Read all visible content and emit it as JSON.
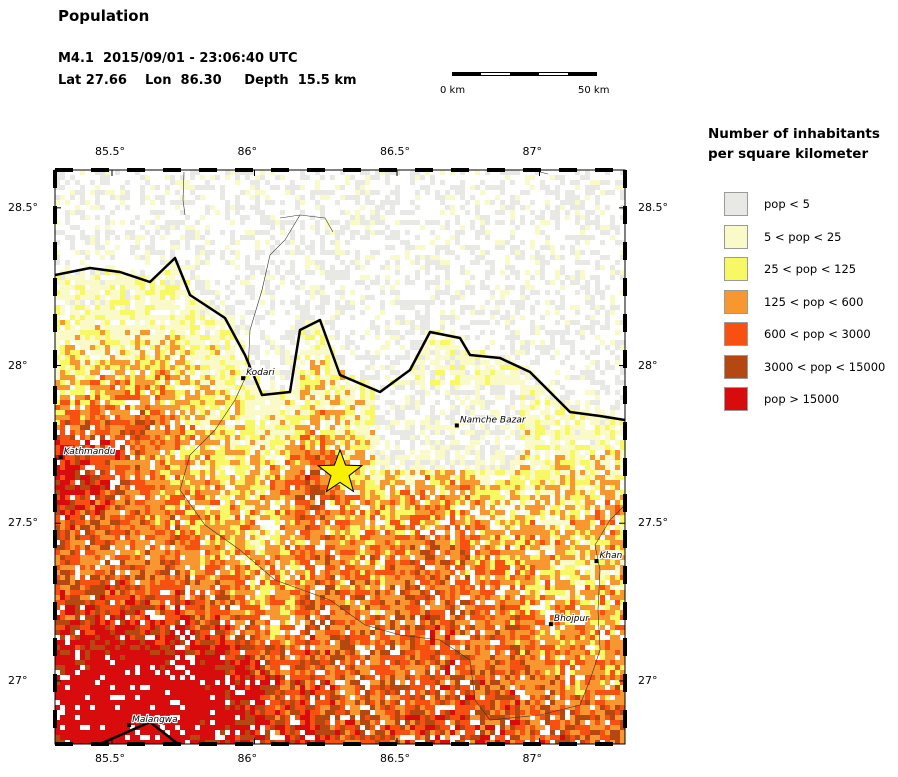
{
  "title": "Population",
  "event": "M4.1  2015/09/01 - 23:06:40 UTC",
  "location": "Lat 27.66    Lon  86.30     Depth  15.5 km",
  "scale": {
    "start": "0 km",
    "end": "50 km"
  },
  "legend": {
    "title_line1": "Number of inhabitants",
    "title_line2": "per square kilometer",
    "items": [
      {
        "label": "pop < 5",
        "color": "#e8e8e4"
      },
      {
        "label": "5 < pop < 25",
        "color": "#fafac8"
      },
      {
        "label": "25 < pop < 125",
        "color": "#f8f864"
      },
      {
        "label": "125 < pop < 600",
        "color": "#f89630"
      },
      {
        "label": "600 < pop < 3000",
        "color": "#f85010"
      },
      {
        "label": "3000 < pop < 15000",
        "color": "#b44810"
      },
      {
        "label": "pop > 15000",
        "color": "#d80c0c"
      }
    ]
  },
  "map": {
    "lon_range": [
      85.3,
      87.3
    ],
    "lat_range": [
      26.8,
      28.62
    ],
    "lon_ticks": [
      "85.5°",
      "86°",
      "86.5°",
      "87°"
    ],
    "lat_ticks": [
      "28.5°",
      "28°",
      "27.5°",
      "27°"
    ],
    "epicenter": {
      "lon": 86.3,
      "lat": 27.66,
      "color": "#f8f000"
    },
    "cities": [
      {
        "name": "Kathmandu",
        "lon": 85.32,
        "lat": 27.71
      },
      {
        "name": "Kodari",
        "lon": 85.96,
        "lat": 27.96
      },
      {
        "name": "Namche Bazar",
        "lon": 86.71,
        "lat": 27.81
      },
      {
        "name": "Khan",
        "lon": 87.2,
        "lat": 27.38
      },
      {
        "name": "Bhojpur",
        "lon": 87.04,
        "lat": 27.18
      },
      {
        "name": "Malangwa",
        "lon": 85.56,
        "lat": 26.86
      }
    ]
  }
}
